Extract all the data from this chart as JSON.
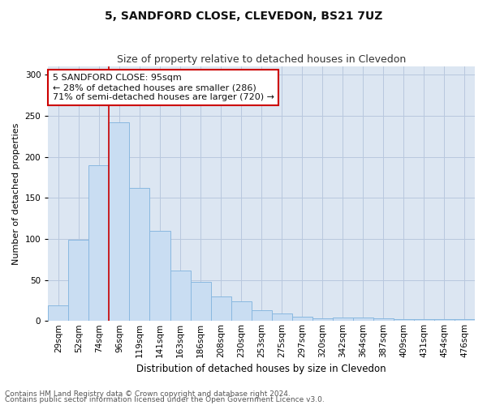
{
  "title1": "5, SANDFORD CLOSE, CLEVEDON, BS21 7UZ",
  "title2": "Size of property relative to detached houses in Clevedon",
  "xlabel": "Distribution of detached houses by size in Clevedon",
  "ylabel": "Number of detached properties",
  "categories": [
    "29sqm",
    "52sqm",
    "74sqm",
    "96sqm",
    "119sqm",
    "141sqm",
    "163sqm",
    "186sqm",
    "208sqm",
    "230sqm",
    "253sqm",
    "275sqm",
    "297sqm",
    "320sqm",
    "342sqm",
    "364sqm",
    "387sqm",
    "409sqm",
    "431sqm",
    "454sqm",
    "476sqm"
  ],
  "values": [
    19,
    99,
    190,
    242,
    162,
    110,
    61,
    48,
    30,
    24,
    13,
    9,
    5,
    3,
    4,
    4,
    3,
    2,
    2,
    2,
    2
  ],
  "bar_color": "#c9ddf2",
  "bar_edge_color": "#89b8e0",
  "vline_index": 3,
  "vline_color": "#cc0000",
  "annotation_text_line1": "5 SANDFORD CLOSE: 95sqm",
  "annotation_text_line2": "← 28% of detached houses are smaller (286)",
  "annotation_text_line3": "71% of semi-detached houses are larger (720) →",
  "annotation_box_color": "white",
  "annotation_box_edge_color": "#cc0000",
  "ylim": [
    0,
    310
  ],
  "yticks": [
    0,
    50,
    100,
    150,
    200,
    250,
    300
  ],
  "grid_color": "#b8c8de",
  "background_color": "#dce6f2",
  "footer1": "Contains HM Land Registry data © Crown copyright and database right 2024.",
  "footer2": "Contains public sector information licensed under the Open Government Licence v3.0.",
  "title1_fontsize": 10,
  "title2_fontsize": 9,
  "xlabel_fontsize": 8.5,
  "ylabel_fontsize": 8,
  "tick_fontsize": 7.5,
  "annotation_fontsize": 8,
  "footer_fontsize": 6.5
}
